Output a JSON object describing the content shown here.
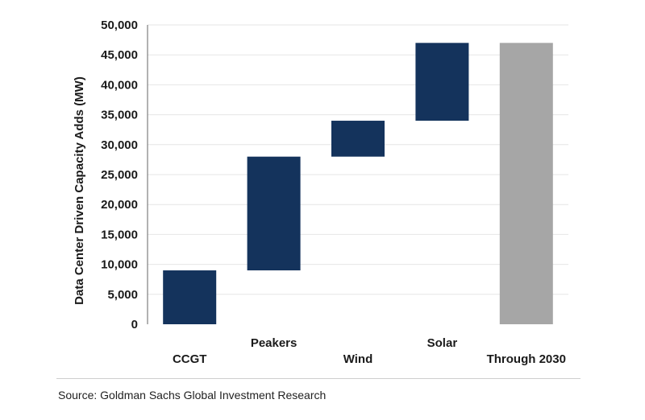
{
  "chart_data": {
    "type": "waterfall",
    "title": "",
    "ylabel": "Data Center Driven Capacity Adds (MW)",
    "xlabel": "",
    "ylim": [
      0,
      50000
    ],
    "yticks": [
      0,
      5000,
      10000,
      15000,
      20000,
      25000,
      30000,
      35000,
      40000,
      45000,
      50000
    ],
    "ytick_labels": [
      "0",
      "5,000",
      "10,000",
      "15,000",
      "20,000",
      "25,000",
      "30,000",
      "35,000",
      "40,000",
      "45,000",
      "50,000"
    ],
    "grid": true,
    "categories": [
      "CCGT",
      "Peakers",
      "Wind",
      "Solar",
      "Through 2030"
    ],
    "bars": [
      {
        "category": "CCGT",
        "start": 0,
        "end": 9000,
        "kind": "increment"
      },
      {
        "category": "Peakers",
        "start": 9000,
        "end": 28000,
        "kind": "increment"
      },
      {
        "category": "Wind",
        "start": 28000,
        "end": 34000,
        "kind": "increment"
      },
      {
        "category": "Solar",
        "start": 34000,
        "end": 47000,
        "kind": "increment"
      },
      {
        "category": "Through 2030",
        "start": 0,
        "end": 47000,
        "kind": "total"
      }
    ],
    "colors": {
      "increment": "#14335c",
      "total": "#a6a6a6"
    }
  },
  "source": "Source: Goldman Sachs Global Investment Research"
}
